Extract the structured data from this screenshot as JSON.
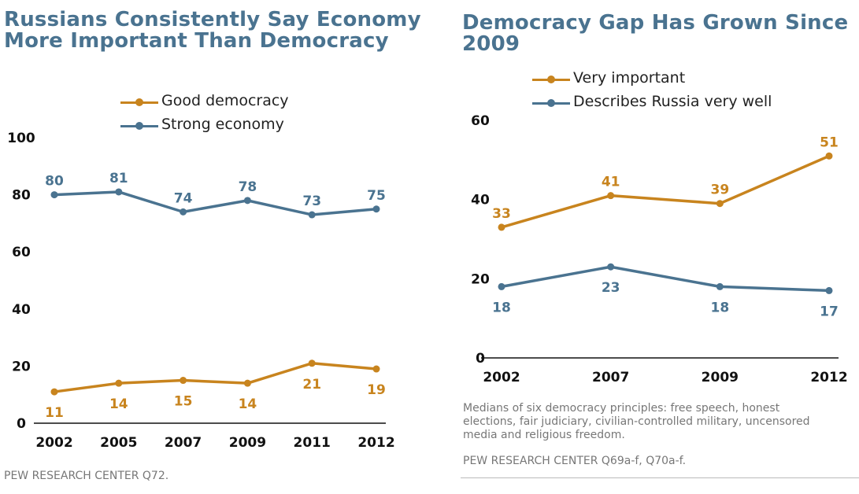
{
  "colors": {
    "gold": "#c8841e",
    "blue": "#4a7390",
    "axis": "#111111"
  },
  "chart_data": [
    {
      "type": "line",
      "title": "Russians Consistently Say Economy More Important Than Democracy",
      "categories": [
        "2002",
        "2005",
        "2007",
        "2009",
        "2011",
        "2012"
      ],
      "series": [
        {
          "name": "Good democracy",
          "values": [
            11,
            14,
            15,
            14,
            21,
            19
          ],
          "color": "#c8841e"
        },
        {
          "name": "Strong economy",
          "values": [
            80,
            81,
            74,
            78,
            73,
            75
          ],
          "color": "#4a7390"
        }
      ],
      "y_ticks": [
        "0",
        "20",
        "40",
        "60",
        "80",
        "100"
      ],
      "ylim": [
        0,
        100
      ],
      "xlabel": "",
      "ylabel": "",
      "grid": false,
      "legend_position": "top-center",
      "source": "PEW RESEARCH CENTER Q72."
    },
    {
      "type": "line",
      "title": "Democracy Gap Has Grown Since 2009",
      "categories": [
        "2002",
        "2007",
        "2009",
        "2012"
      ],
      "series": [
        {
          "name": "Very important",
          "values": [
            33,
            41,
            39,
            51
          ],
          "color": "#c8841e"
        },
        {
          "name": "Describes Russia very well",
          "values": [
            18,
            23,
            18,
            17
          ],
          "color": "#4a7390"
        }
      ],
      "y_ticks": [
        "0",
        "20",
        "40",
        "60"
      ],
      "ylim": [
        0,
        60
      ],
      "xlabel": "",
      "ylabel": "",
      "grid": false,
      "legend_position": "top-center",
      "note": "Medians of six democracy principles: free speech, honest elections, fair judiciary, civilian-controlled military, uncensored media and religious freedom.",
      "source": "PEW RESEARCH CENTER Q69a-f, Q70a-f."
    }
  ]
}
